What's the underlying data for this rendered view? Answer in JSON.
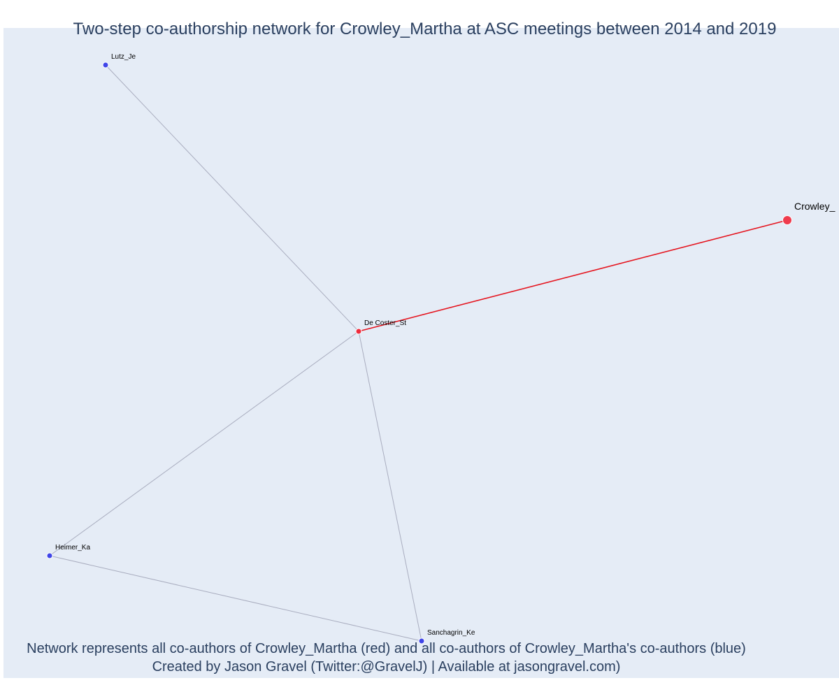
{
  "title": "Two-step co-authorship network for Crowley_Martha at ASC meetings between 2014 and 2019",
  "caption": {
    "line1": "Network represents all co-authors of Crowley_Martha (red) and all co-authors of Crowley_Martha's co-authors (blue)",
    "line2": "Created by Jason Gravel (Twitter:@GravelJ) | Available at jasongravel.com)"
  },
  "colors": {
    "background": "#e5ecf6",
    "focal": "#ef3b4d",
    "coauthor": "#ef2b3c",
    "second_step": "#3f45e8",
    "focal_edge": "#e5141e",
    "edge": "#a9adbf"
  },
  "network": {
    "nodes": [
      {
        "id": "Crowley_Martha",
        "label": "Crowley_",
        "role": "focal"
      },
      {
        "id": "De Coster_St",
        "label": "De Coster_St",
        "role": "coauthor"
      },
      {
        "id": "Lutz_Je",
        "label": "Lutz_Je",
        "role": "second_step"
      },
      {
        "id": "Heimer_Ka",
        "label": "Heimer_Ka",
        "role": "second_step"
      },
      {
        "id": "Sanchagrin_Ke",
        "label": "Sanchagrin_Ke",
        "role": "second_step"
      }
    ],
    "edges": [
      {
        "source": "De Coster_St",
        "target": "Crowley_Martha",
        "type": "focal"
      },
      {
        "source": "De Coster_St",
        "target": "Lutz_Je",
        "type": "other"
      },
      {
        "source": "De Coster_St",
        "target": "Heimer_Ka",
        "type": "other"
      },
      {
        "source": "De Coster_St",
        "target": "Sanchagrin_Ke",
        "type": "other"
      },
      {
        "source": "Heimer_Ka",
        "target": "Sanchagrin_Ke",
        "type": "other"
      }
    ]
  }
}
